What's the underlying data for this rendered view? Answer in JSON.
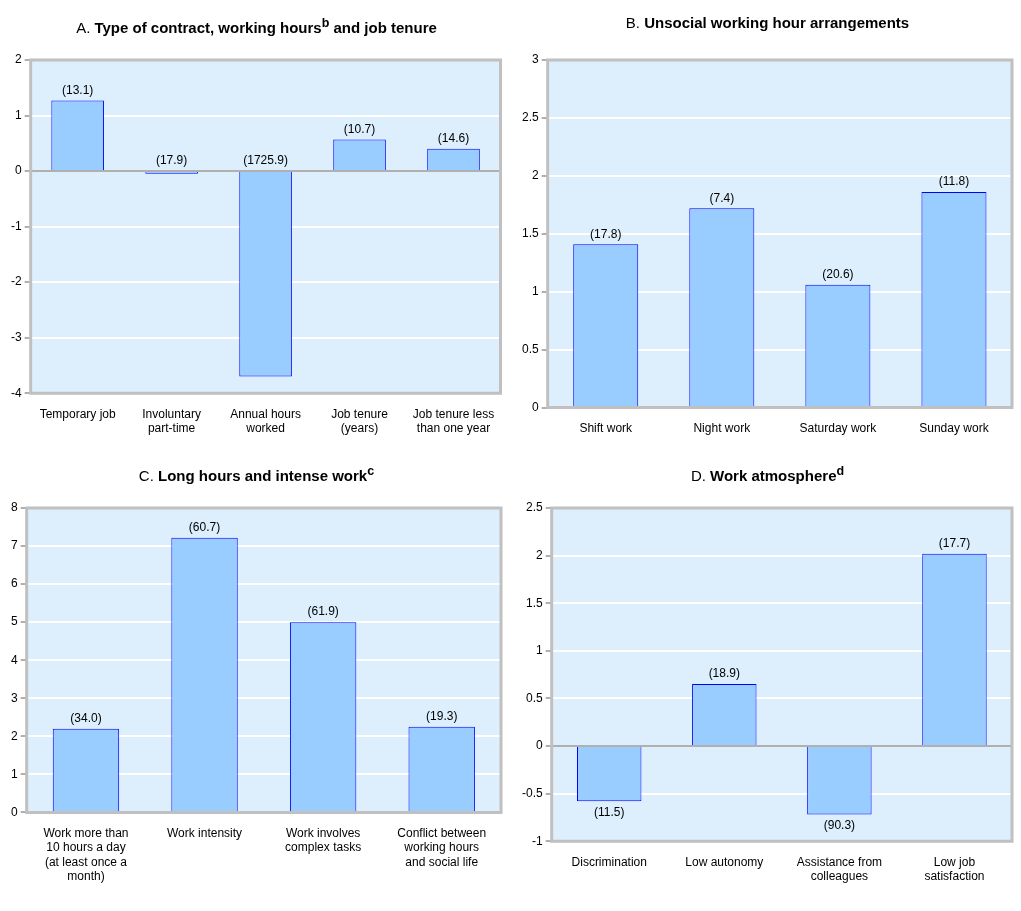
{
  "chart_data": [
    {
      "type": "bar",
      "title": "A. Type of contract, working hours$^{b}$ and job tenure",
      "categories": [
        "Temporary job",
        "Involuntary part-time",
        "Annual hours worked",
        "Job tenure (years)",
        "Job tenure less than one year"
      ],
      "values": [
        1.27,
        -0.05,
        -3.7,
        0.57,
        0.4
      ],
      "color": "#99ccff",
      "ylim": [
        -4,
        2
      ],
      "yticks": [
        -4,
        -3,
        -2,
        -1,
        0,
        1,
        2
      ],
      "grid": "y",
      "annotations": [
        {
          "text": "(13.1)",
          "x": "Temporary job",
          "y": 1.27
        },
        {
          "text": "(17.9)",
          "x": "Involuntary part-time",
          "y": 0
        },
        {
          "text": "(1725.9)",
          "x": "Annual hours worked",
          "y": 0
        },
        {
          "text": "(10.7)",
          "x": "Job tenure (years)",
          "y": 0.57
        },
        {
          "text": "(14.6)",
          "x": "Job tenure less than one year",
          "y": 0.4
        }
      ]
    },
    {
      "type": "bar",
      "title": "B. Unsocial working hour arrangements",
      "categories": [
        "Shift work",
        "Night work",
        "Saturday work",
        "Sunday work"
      ],
      "values": [
        1.41,
        1.72,
        1.06,
        1.86
      ],
      "color": "#99ccff",
      "ylim": [
        0,
        3
      ],
      "yticks": [
        0,
        0.5,
        1,
        1.5,
        2,
        2.5,
        3
      ],
      "grid": "y",
      "annotations": [
        {
          "text": "(17.8)",
          "x": "Shift work",
          "y": 1.41
        },
        {
          "text": "(7.4)",
          "x": "Night work",
          "y": 1.72
        },
        {
          "text": "(20.6)",
          "x": "Saturday work",
          "y": 1.06
        },
        {
          "text": "(11.8)",
          "x": "Sunday work",
          "y": 1.86
        }
      ]
    },
    {
      "type": "bar",
      "title": "C. Long hours and intense work$^{c}$",
      "categories": [
        "Work more than 10 hours a day (at least once a month)",
        "Work intensity",
        "Work involves complex tasks",
        "Conflict between working hours and social life"
      ],
      "values": [
        2.2,
        7.22,
        5.0,
        2.25
      ],
      "color": "#99ccff",
      "ylim": [
        0,
        8
      ],
      "yticks": [
        0,
        1,
        2,
        3,
        4,
        5,
        6,
        7,
        8
      ],
      "grid": "y",
      "annotations": [
        {
          "text": "(34.0)",
          "x": "Work more than 10 hours a day (at least once a month)",
          "y": 2.2
        },
        {
          "text": "(60.7)",
          "x": "Work intensity",
          "y": 7.22
        },
        {
          "text": "(61.9)",
          "x": "Work involves complex tasks",
          "y": 5.0
        },
        {
          "text": "(19.3)",
          "x": "Conflict between working hours and social life",
          "y": 2.25
        }
      ]
    },
    {
      "type": "bar",
      "title": "D. Work atmosphere$^{d}$",
      "categories": [
        "Discrimination",
        "Low autonomy",
        "Assistance from colleagues",
        "Low job satisfaction"
      ],
      "values": [
        -0.58,
        0.65,
        -0.72,
        2.02
      ],
      "color": "#99ccff",
      "ylim": [
        -1,
        2.5
      ],
      "yticks": [
        -1,
        -0.5,
        0,
        0.5,
        1,
        1.5,
        2,
        2.5
      ],
      "grid": "y",
      "annotations": [
        {
          "text": "(11.5)",
          "x": "Discrimination",
          "y": -0.58
        },
        {
          "text": "(18.9)",
          "x": "Low autonomy",
          "y": 0.65
        },
        {
          "text": "(90.3)",
          "x": "Assistance from colleagues",
          "y": -0.72
        },
        {
          "text": "(17.7)",
          "x": "Low job satisfaction",
          "y": 2.02
        }
      ]
    }
  ]
}
